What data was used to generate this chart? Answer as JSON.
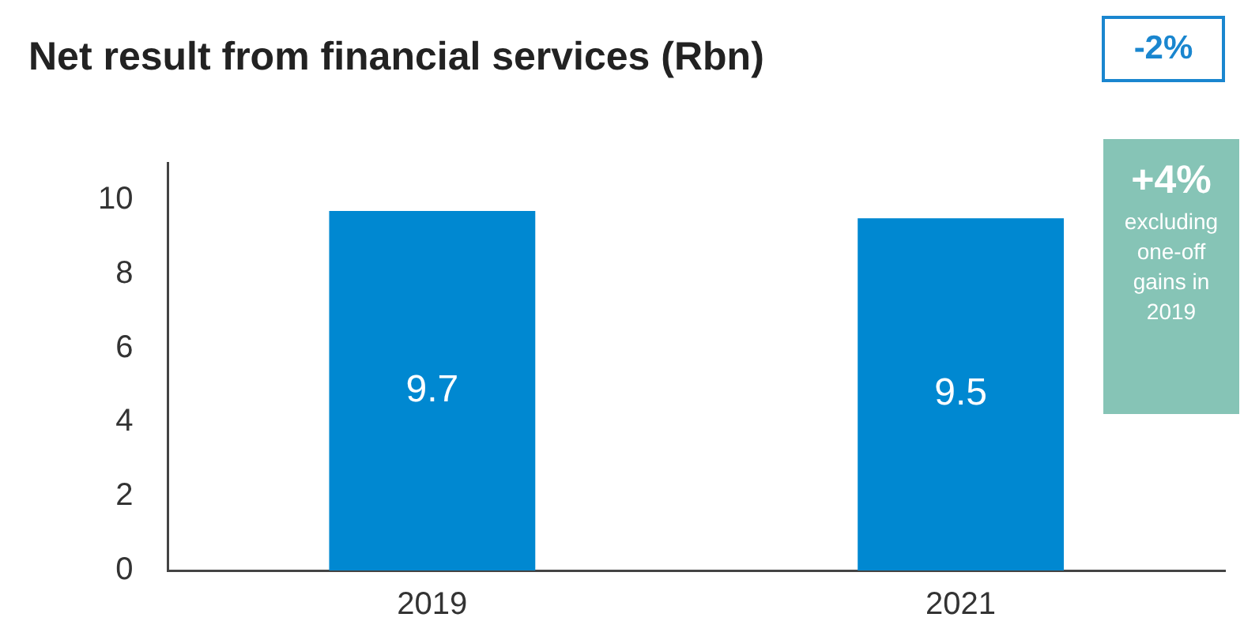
{
  "chart_data": {
    "type": "bar",
    "title": "Net result from financial services (Rbn)",
    "categories": [
      "2019",
      "2021"
    ],
    "values": [
      9.7,
      9.5
    ],
    "color": "#0088d1",
    "ylim": [
      0,
      11
    ],
    "yticks": [
      0,
      2,
      4,
      6,
      8,
      10
    ],
    "grid": false,
    "legend": false,
    "data_labels": true,
    "annotations": [
      "-2%",
      "+4%",
      "excluding one-off gains in 2019"
    ]
  }
}
